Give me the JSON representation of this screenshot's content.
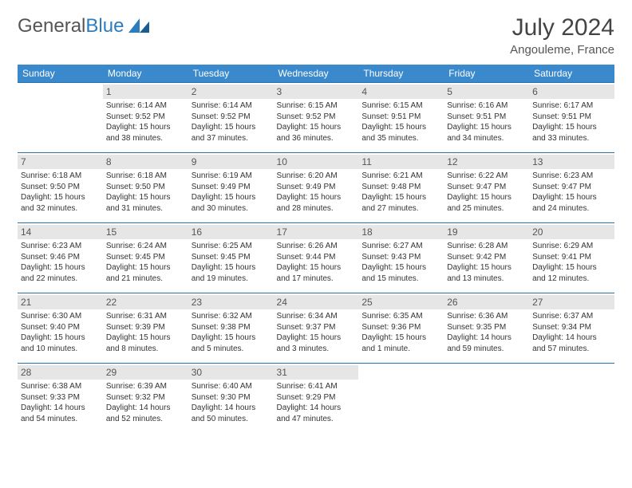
{
  "brand": {
    "part1": "General",
    "part2": "Blue"
  },
  "title": "July 2024",
  "location": "Angouleme, France",
  "colors": {
    "header_bg": "#3a89cc",
    "header_text": "#ffffff",
    "row_border": "#2b6fa8",
    "daynum_bg": "#e6e6e6",
    "brand_blue": "#2b7dbf"
  },
  "weekdays": [
    "Sunday",
    "Monday",
    "Tuesday",
    "Wednesday",
    "Thursday",
    "Friday",
    "Saturday"
  ],
  "weeks": [
    [
      {
        "day": "",
        "sunrise": "",
        "sunset": "",
        "daylight": ""
      },
      {
        "day": "1",
        "sunrise": "Sunrise: 6:14 AM",
        "sunset": "Sunset: 9:52 PM",
        "daylight": "Daylight: 15 hours and 38 minutes."
      },
      {
        "day": "2",
        "sunrise": "Sunrise: 6:14 AM",
        "sunset": "Sunset: 9:52 PM",
        "daylight": "Daylight: 15 hours and 37 minutes."
      },
      {
        "day": "3",
        "sunrise": "Sunrise: 6:15 AM",
        "sunset": "Sunset: 9:52 PM",
        "daylight": "Daylight: 15 hours and 36 minutes."
      },
      {
        "day": "4",
        "sunrise": "Sunrise: 6:15 AM",
        "sunset": "Sunset: 9:51 PM",
        "daylight": "Daylight: 15 hours and 35 minutes."
      },
      {
        "day": "5",
        "sunrise": "Sunrise: 6:16 AM",
        "sunset": "Sunset: 9:51 PM",
        "daylight": "Daylight: 15 hours and 34 minutes."
      },
      {
        "day": "6",
        "sunrise": "Sunrise: 6:17 AM",
        "sunset": "Sunset: 9:51 PM",
        "daylight": "Daylight: 15 hours and 33 minutes."
      }
    ],
    [
      {
        "day": "7",
        "sunrise": "Sunrise: 6:18 AM",
        "sunset": "Sunset: 9:50 PM",
        "daylight": "Daylight: 15 hours and 32 minutes."
      },
      {
        "day": "8",
        "sunrise": "Sunrise: 6:18 AM",
        "sunset": "Sunset: 9:50 PM",
        "daylight": "Daylight: 15 hours and 31 minutes."
      },
      {
        "day": "9",
        "sunrise": "Sunrise: 6:19 AM",
        "sunset": "Sunset: 9:49 PM",
        "daylight": "Daylight: 15 hours and 30 minutes."
      },
      {
        "day": "10",
        "sunrise": "Sunrise: 6:20 AM",
        "sunset": "Sunset: 9:49 PM",
        "daylight": "Daylight: 15 hours and 28 minutes."
      },
      {
        "day": "11",
        "sunrise": "Sunrise: 6:21 AM",
        "sunset": "Sunset: 9:48 PM",
        "daylight": "Daylight: 15 hours and 27 minutes."
      },
      {
        "day": "12",
        "sunrise": "Sunrise: 6:22 AM",
        "sunset": "Sunset: 9:47 PM",
        "daylight": "Daylight: 15 hours and 25 minutes."
      },
      {
        "day": "13",
        "sunrise": "Sunrise: 6:23 AM",
        "sunset": "Sunset: 9:47 PM",
        "daylight": "Daylight: 15 hours and 24 minutes."
      }
    ],
    [
      {
        "day": "14",
        "sunrise": "Sunrise: 6:23 AM",
        "sunset": "Sunset: 9:46 PM",
        "daylight": "Daylight: 15 hours and 22 minutes."
      },
      {
        "day": "15",
        "sunrise": "Sunrise: 6:24 AM",
        "sunset": "Sunset: 9:45 PM",
        "daylight": "Daylight: 15 hours and 21 minutes."
      },
      {
        "day": "16",
        "sunrise": "Sunrise: 6:25 AM",
        "sunset": "Sunset: 9:45 PM",
        "daylight": "Daylight: 15 hours and 19 minutes."
      },
      {
        "day": "17",
        "sunrise": "Sunrise: 6:26 AM",
        "sunset": "Sunset: 9:44 PM",
        "daylight": "Daylight: 15 hours and 17 minutes."
      },
      {
        "day": "18",
        "sunrise": "Sunrise: 6:27 AM",
        "sunset": "Sunset: 9:43 PM",
        "daylight": "Daylight: 15 hours and 15 minutes."
      },
      {
        "day": "19",
        "sunrise": "Sunrise: 6:28 AM",
        "sunset": "Sunset: 9:42 PM",
        "daylight": "Daylight: 15 hours and 13 minutes."
      },
      {
        "day": "20",
        "sunrise": "Sunrise: 6:29 AM",
        "sunset": "Sunset: 9:41 PM",
        "daylight": "Daylight: 15 hours and 12 minutes."
      }
    ],
    [
      {
        "day": "21",
        "sunrise": "Sunrise: 6:30 AM",
        "sunset": "Sunset: 9:40 PM",
        "daylight": "Daylight: 15 hours and 10 minutes."
      },
      {
        "day": "22",
        "sunrise": "Sunrise: 6:31 AM",
        "sunset": "Sunset: 9:39 PM",
        "daylight": "Daylight: 15 hours and 8 minutes."
      },
      {
        "day": "23",
        "sunrise": "Sunrise: 6:32 AM",
        "sunset": "Sunset: 9:38 PM",
        "daylight": "Daylight: 15 hours and 5 minutes."
      },
      {
        "day": "24",
        "sunrise": "Sunrise: 6:34 AM",
        "sunset": "Sunset: 9:37 PM",
        "daylight": "Daylight: 15 hours and 3 minutes."
      },
      {
        "day": "25",
        "sunrise": "Sunrise: 6:35 AM",
        "sunset": "Sunset: 9:36 PM",
        "daylight": "Daylight: 15 hours and 1 minute."
      },
      {
        "day": "26",
        "sunrise": "Sunrise: 6:36 AM",
        "sunset": "Sunset: 9:35 PM",
        "daylight": "Daylight: 14 hours and 59 minutes."
      },
      {
        "day": "27",
        "sunrise": "Sunrise: 6:37 AM",
        "sunset": "Sunset: 9:34 PM",
        "daylight": "Daylight: 14 hours and 57 minutes."
      }
    ],
    [
      {
        "day": "28",
        "sunrise": "Sunrise: 6:38 AM",
        "sunset": "Sunset: 9:33 PM",
        "daylight": "Daylight: 14 hours and 54 minutes."
      },
      {
        "day": "29",
        "sunrise": "Sunrise: 6:39 AM",
        "sunset": "Sunset: 9:32 PM",
        "daylight": "Daylight: 14 hours and 52 minutes."
      },
      {
        "day": "30",
        "sunrise": "Sunrise: 6:40 AM",
        "sunset": "Sunset: 9:30 PM",
        "daylight": "Daylight: 14 hours and 50 minutes."
      },
      {
        "day": "31",
        "sunrise": "Sunrise: 6:41 AM",
        "sunset": "Sunset: 9:29 PM",
        "daylight": "Daylight: 14 hours and 47 minutes."
      },
      {
        "day": "",
        "sunrise": "",
        "sunset": "",
        "daylight": ""
      },
      {
        "day": "",
        "sunrise": "",
        "sunset": "",
        "daylight": ""
      },
      {
        "day": "",
        "sunrise": "",
        "sunset": "",
        "daylight": ""
      }
    ]
  ]
}
